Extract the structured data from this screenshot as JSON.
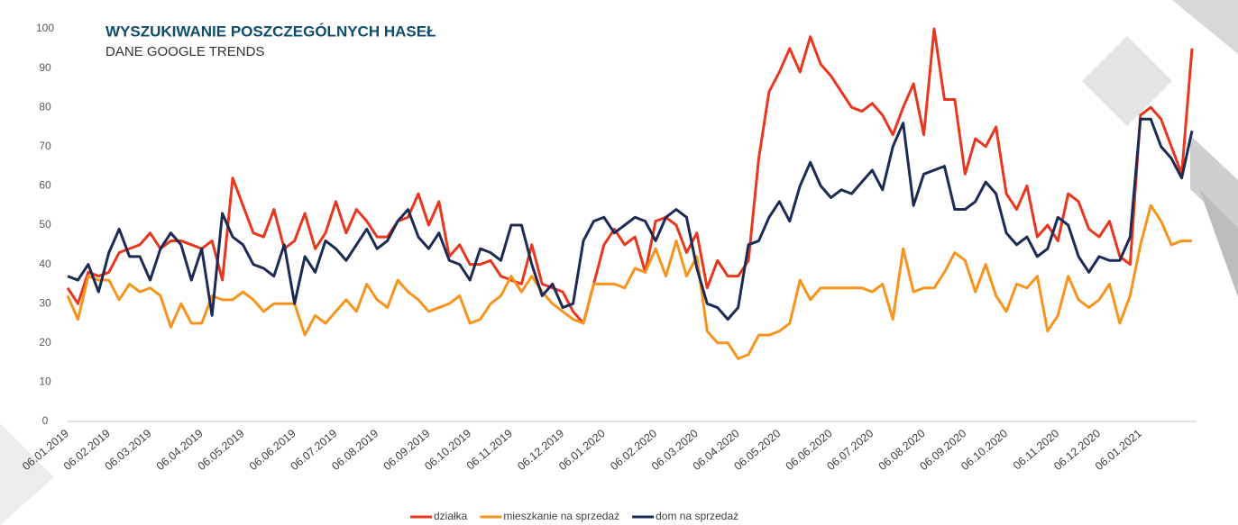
{
  "chart_data": {
    "type": "line",
    "title": "WYSZUKIWANIE POSZCZEGÓLNYCH HASEŁ",
    "subtitle": "DANE GOOGLE TRENDS",
    "categories": [
      "06.01.2019",
      null,
      null,
      null,
      "06.02.2019",
      null,
      null,
      null,
      "06.03.2019",
      null,
      null,
      null,
      null,
      "06.04.2019",
      null,
      null,
      null,
      "06.05.2019",
      null,
      null,
      null,
      null,
      "06.06.2019",
      null,
      null,
      null,
      "06.07.2019",
      null,
      null,
      null,
      "06.08.2019",
      null,
      null,
      null,
      null,
      "06.09.2019",
      null,
      null,
      null,
      "06.10.2019",
      null,
      null,
      null,
      "06.11.2019",
      null,
      null,
      null,
      null,
      "06.12.2019",
      null,
      null,
      null,
      "06.01.2020",
      null,
      null,
      null,
      null,
      "06.02.2020",
      null,
      null,
      null,
      "06.03.2020",
      null,
      null,
      null,
      "06.04.2020",
      null,
      null,
      null,
      "06.05.2020",
      null,
      null,
      null,
      null,
      "06.06.2020",
      null,
      null,
      null,
      "06.07.2020",
      null,
      null,
      null,
      null,
      "06.08.2020",
      null,
      null,
      null,
      "06.09.2020",
      null,
      null,
      null,
      "06.10.2020",
      null,
      null,
      null,
      null,
      "06.11.2020",
      null,
      null,
      null,
      "06.12.2020",
      null,
      null,
      null,
      "06.01.2021",
      null,
      null,
      null,
      null,
      null
    ],
    "series": [
      {
        "name": "działka",
        "color": "#e8371e",
        "values": [
          34,
          30,
          38,
          37,
          38,
          43,
          44,
          45,
          48,
          44,
          46,
          46,
          45,
          44,
          46,
          36,
          62,
          55,
          48,
          47,
          54,
          44,
          46,
          53,
          44,
          48,
          56,
          48,
          54,
          51,
          47,
          47,
          51,
          52,
          58,
          50,
          56,
          42,
          45,
          40,
          40,
          41,
          37,
          36,
          35,
          45,
          35,
          34,
          33,
          28,
          25,
          35,
          45,
          49,
          45,
          47,
          38,
          51,
          52,
          50,
          43,
          48,
          34,
          41,
          37,
          37,
          41,
          67,
          84,
          89,
          95,
          89,
          98,
          91,
          88,
          84,
          80,
          79,
          81,
          78,
          73,
          80,
          86,
          73,
          100,
          82,
          82,
          63,
          72,
          70,
          75,
          58,
          54,
          60,
          47,
          50,
          46,
          58,
          56,
          49,
          47,
          51,
          42,
          40,
          78,
          80,
          77,
          70,
          63,
          95
        ]
      },
      {
        "name": "mieszkanie na sprzedaż",
        "color": "#f7941d",
        "values": [
          32,
          26,
          37,
          36,
          36,
          31,
          35,
          33,
          34,
          32,
          24,
          30,
          25,
          25,
          32,
          31,
          31,
          33,
          31,
          28,
          30,
          30,
          30,
          22,
          27,
          25,
          28,
          31,
          28,
          35,
          31,
          29,
          36,
          33,
          31,
          28,
          29,
          30,
          32,
          25,
          26,
          30,
          32,
          37,
          33,
          37,
          33,
          30,
          28,
          26,
          25,
          35,
          35,
          35,
          34,
          39,
          38,
          44,
          37,
          46,
          37,
          42,
          23,
          20,
          20,
          16,
          17,
          22,
          22,
          23,
          25,
          36,
          31,
          34,
          34,
          34,
          34,
          34,
          33,
          35,
          26,
          44,
          33,
          34,
          34,
          38,
          43,
          41,
          33,
          40,
          32,
          28,
          35,
          34,
          37,
          23,
          27,
          37,
          31,
          29,
          31,
          35,
          25,
          32,
          45,
          55,
          51,
          45,
          46,
          46
        ]
      },
      {
        "name": "dom na sprzedaż",
        "color": "#1c2a54",
        "values": [
          37,
          36,
          40,
          33,
          43,
          49,
          42,
          42,
          36,
          44,
          48,
          45,
          36,
          44,
          27,
          53,
          47,
          45,
          40,
          39,
          37,
          45,
          30,
          42,
          38,
          46,
          44,
          41,
          45,
          49,
          44,
          46,
          51,
          54,
          47,
          44,
          48,
          41,
          40,
          36,
          44,
          43,
          41,
          50,
          50,
          40,
          32,
          35,
          29,
          30,
          46,
          51,
          52,
          48,
          50,
          52,
          51,
          46,
          52,
          54,
          52,
          39,
          30,
          29,
          26,
          29,
          45,
          46,
          52,
          56,
          51,
          60,
          66,
          60,
          57,
          59,
          58,
          61,
          64,
          59,
          70,
          76,
          55,
          63,
          64,
          65,
          54,
          54,
          56,
          61,
          58,
          48,
          45,
          47,
          42,
          44,
          52,
          50,
          42,
          38,
          42,
          41,
          41,
          47,
          77,
          77,
          70,
          67,
          62,
          74
        ]
      }
    ],
    "ylim": [
      0,
      100
    ],
    "yticks": [
      0,
      10,
      20,
      30,
      40,
      50,
      60,
      70,
      80,
      90,
      100
    ],
    "legend": "bottom"
  }
}
